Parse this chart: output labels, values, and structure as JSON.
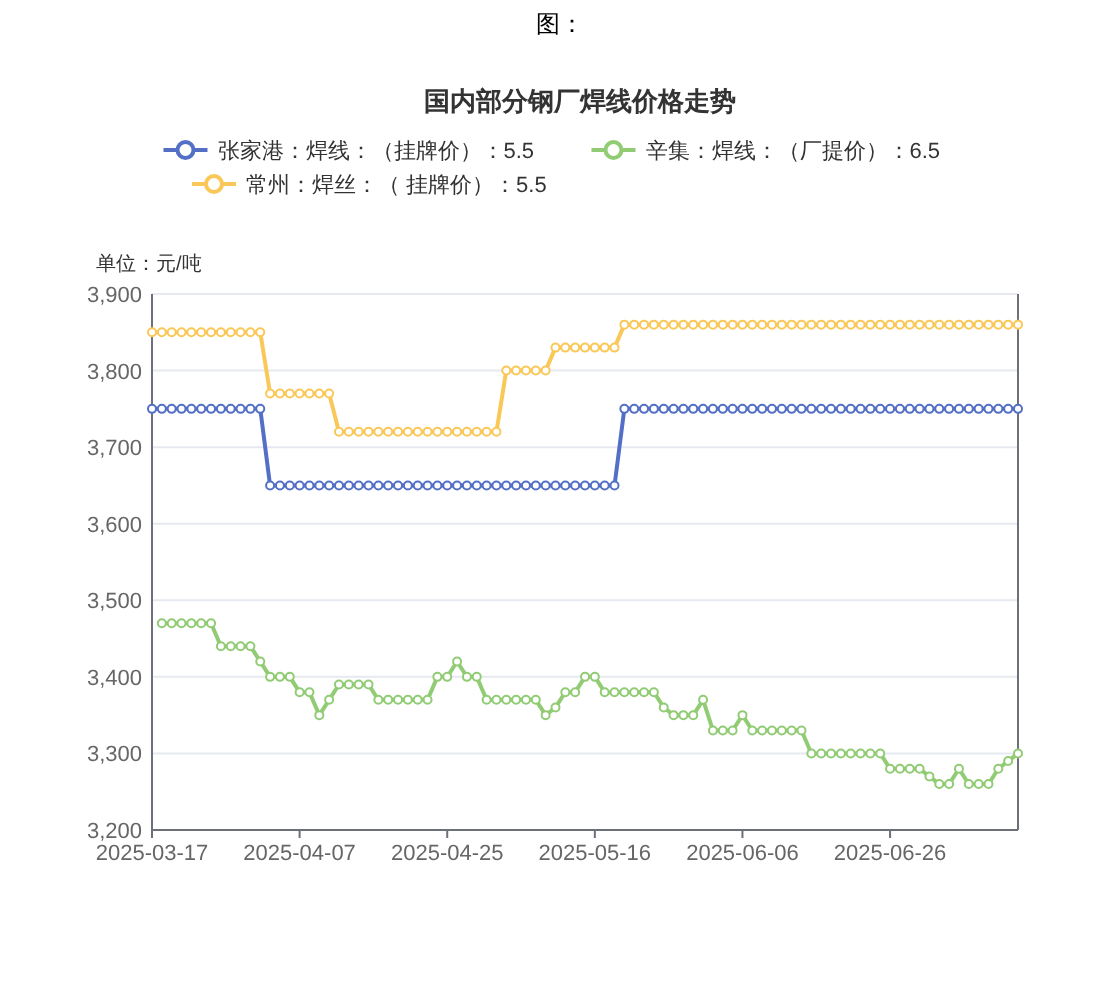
{
  "chart_data": {
    "type": "line",
    "title": "国内部分钢厂焊线价格走势",
    "ylabel": "单位：元/吨",
    "annotations": [
      "图："
    ],
    "categories": [
      "2025-03-17",
      null,
      null,
      null,
      null,
      null,
      null,
      null,
      null,
      null,
      null,
      null,
      null,
      null,
      null,
      "2025-04-07",
      null,
      null,
      null,
      null,
      null,
      null,
      null,
      null,
      null,
      null,
      null,
      null,
      null,
      null,
      "2025-04-25",
      null,
      null,
      null,
      null,
      null,
      null,
      null,
      null,
      null,
      null,
      null,
      null,
      null,
      null,
      "2025-05-16",
      null,
      null,
      null,
      null,
      null,
      null,
      null,
      null,
      null,
      null,
      null,
      null,
      null,
      null,
      "2025-06-06",
      null,
      null,
      null,
      null,
      null,
      null,
      null,
      null,
      null,
      null,
      null,
      null,
      null,
      null,
      "2025-06-26",
      null,
      null,
      null,
      null,
      null,
      null,
      null,
      null,
      null,
      null,
      null,
      null,
      null
    ],
    "series": [
      {
        "name": "张家港：焊线：（挂牌价）：5.5",
        "color": "#5470c6",
        "values": [
          3750,
          3750,
          3750,
          3750,
          3750,
          3750,
          3750,
          3750,
          3750,
          3750,
          3750,
          3750,
          3650,
          3650,
          3650,
          3650,
          3650,
          3650,
          3650,
          3650,
          3650,
          3650,
          3650,
          3650,
          3650,
          3650,
          3650,
          3650,
          3650,
          3650,
          3650,
          3650,
          3650,
          3650,
          3650,
          3650,
          3650,
          3650,
          3650,
          3650,
          3650,
          3650,
          3650,
          3650,
          3650,
          3650,
          3650,
          3650,
          3750,
          3750,
          3750,
          3750,
          3750,
          3750,
          3750,
          3750,
          3750,
          3750,
          3750,
          3750,
          3750,
          3750,
          3750,
          3750,
          3750,
          3750,
          3750,
          3750,
          3750,
          3750,
          3750,
          3750,
          3750,
          3750,
          3750,
          3750,
          3750,
          3750,
          3750,
          3750,
          3750,
          3750,
          3750,
          3750,
          3750,
          3750,
          3750,
          3750,
          3750
        ]
      },
      {
        "name": "辛集：焊线：（厂提价）：6.5",
        "color": "#91cc75",
        "values": [
          null,
          3470,
          3470,
          3470,
          3470,
          3470,
          3470,
          3440,
          3440,
          3440,
          3440,
          3420,
          3400,
          3400,
          3400,
          3380,
          3380,
          3350,
          3370,
          3390,
          3390,
          3390,
          3390,
          3370,
          3370,
          3370,
          3370,
          3370,
          3370,
          3400,
          3400,
          3420,
          3400,
          3400,
          3370,
          3370,
          3370,
          3370,
          3370,
          3370,
          3350,
          3360,
          3380,
          3380,
          3400,
          3400,
          3380,
          3380,
          3380,
          3380,
          3380,
          3380,
          3360,
          3350,
          3350,
          3350,
          3370,
          3330,
          3330,
          3330,
          3350,
          3330,
          3330,
          3330,
          3330,
          3330,
          3330,
          3300,
          3300,
          3300,
          3300,
          3300,
          3300,
          3300,
          3300,
          3280,
          3280,
          3280,
          3280,
          3270,
          3260,
          3260,
          3280,
          3260,
          3260,
          3260,
          3280,
          3290,
          3300
        ]
      },
      {
        "name": "常州：焊丝：（ 挂牌价）：5.5",
        "color": "#fac858",
        "values": [
          3850,
          3850,
          3850,
          3850,
          3850,
          3850,
          3850,
          3850,
          3850,
          3850,
          3850,
          3850,
          3770,
          3770,
          3770,
          3770,
          3770,
          3770,
          3770,
          3720,
          3720,
          3720,
          3720,
          3720,
          3720,
          3720,
          3720,
          3720,
          3720,
          3720,
          3720,
          3720,
          3720,
          3720,
          3720,
          3720,
          3800,
          3800,
          3800,
          3800,
          3800,
          3830,
          3830,
          3830,
          3830,
          3830,
          3830,
          3830,
          3860,
          3860,
          3860,
          3860,
          3860,
          3860,
          3860,
          3860,
          3860,
          3860,
          3860,
          3860,
          3860,
          3860,
          3860,
          3860,
          3860,
          3860,
          3860,
          3860,
          3860,
          3860,
          3860,
          3860,
          3860,
          3860,
          3860,
          3860,
          3860,
          3860,
          3860,
          3860,
          3860,
          3860,
          3860,
          3860,
          3860,
          3860,
          3860,
          3860,
          3860
        ]
      }
    ],
    "ylim": [
      3200,
      3900
    ],
    "yticks": [
      {
        "value": 3200,
        "label": "3,200"
      },
      {
        "value": 3300,
        "label": "3,300"
      },
      {
        "value": 3400,
        "label": "3,400"
      },
      {
        "value": 3500,
        "label": "3,500"
      },
      {
        "value": 3600,
        "label": "3,600"
      },
      {
        "value": 3700,
        "label": "3,700"
      },
      {
        "value": 3800,
        "label": "3,800"
      },
      {
        "value": 3900,
        "label": "3,900"
      }
    ],
    "grid": "y",
    "legend": "top",
    "marker": "circle",
    "line_style": "solid"
  }
}
